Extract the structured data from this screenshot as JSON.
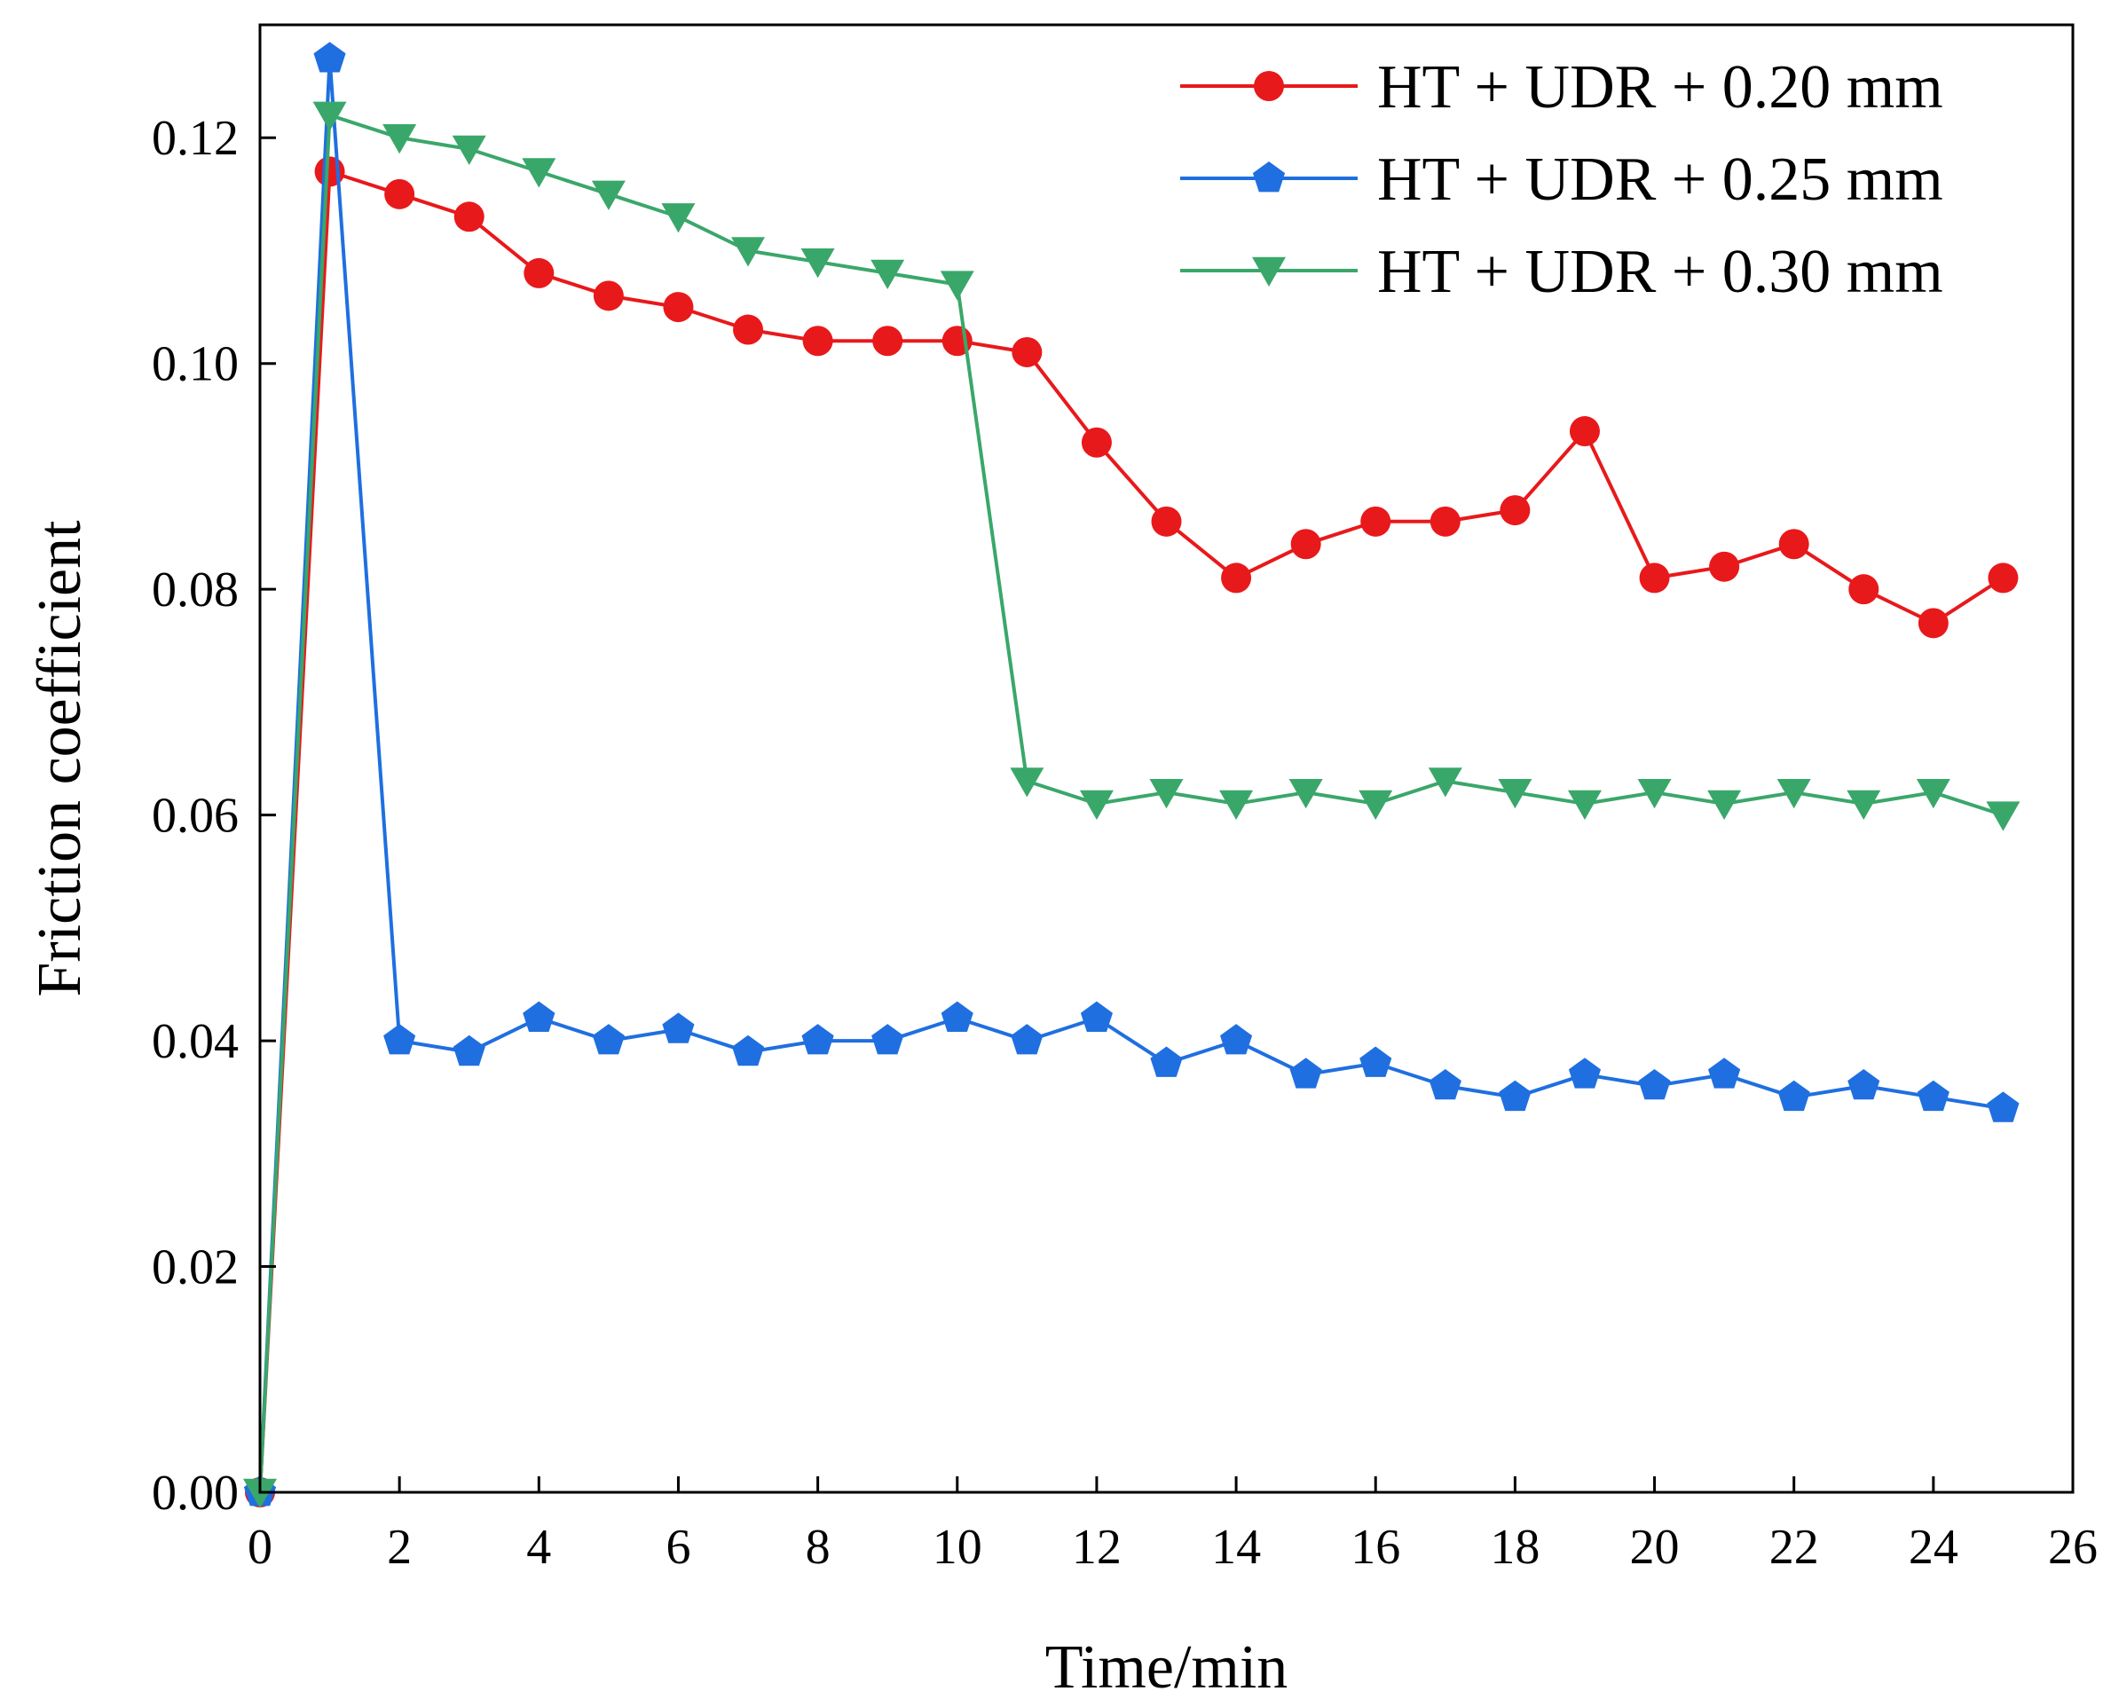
{
  "chart_data": {
    "type": "line",
    "title": "",
    "xlabel": "Time/min",
    "ylabel": "Friction coefficient",
    "xlim": [
      0,
      26
    ],
    "ylim": [
      0,
      0.13
    ],
    "xticks": [
      0,
      2,
      4,
      6,
      8,
      10,
      12,
      14,
      16,
      18,
      20,
      22,
      24,
      26
    ],
    "yticks": [
      0.0,
      0.02,
      0.04,
      0.06,
      0.08,
      0.1,
      0.12
    ],
    "ytick_labels": [
      "0.00",
      "0.02",
      "0.04",
      "0.06",
      "0.08",
      "0.10",
      "0.12"
    ],
    "grid": false,
    "legend_position": "top-right",
    "x": [
      0,
      1,
      2,
      3,
      4,
      5,
      6,
      7,
      8,
      9,
      10,
      11,
      12,
      13,
      14,
      15,
      16,
      17,
      18,
      19,
      20,
      21,
      22,
      23,
      24,
      25
    ],
    "series": [
      {
        "name": "HT + UDR + 0.20 mm",
        "color": "#e8191b",
        "marker": "circle",
        "values": [
          0.0,
          0.117,
          0.115,
          0.113,
          0.108,
          0.106,
          0.105,
          0.103,
          0.102,
          0.102,
          0.102,
          0.101,
          0.093,
          0.086,
          0.081,
          0.084,
          0.086,
          0.086,
          0.087,
          0.094,
          0.081,
          0.082,
          0.084,
          0.08,
          0.077,
          0.081
        ]
      },
      {
        "name": "HT + UDR + 0.25 mm",
        "color": "#1f6fe0",
        "marker": "pentagon",
        "values": [
          0.0,
          0.127,
          0.04,
          0.039,
          0.042,
          0.04,
          0.041,
          0.039,
          0.04,
          0.04,
          0.042,
          0.04,
          0.042,
          0.038,
          0.04,
          0.037,
          0.038,
          0.036,
          0.035,
          0.037,
          0.036,
          0.037,
          0.035,
          0.036,
          0.035,
          0.034
        ]
      },
      {
        "name": "HT + UDR + 0.30 mm",
        "color": "#3aa76a",
        "marker": "triangle-down",
        "values": [
          0.0,
          0.122,
          0.12,
          0.119,
          0.117,
          0.115,
          0.113,
          0.11,
          0.109,
          0.108,
          0.107,
          0.063,
          0.061,
          0.062,
          0.061,
          0.062,
          0.061,
          0.063,
          0.062,
          0.061,
          0.062,
          0.061,
          0.062,
          0.061,
          0.062,
          0.06
        ]
      }
    ]
  }
}
